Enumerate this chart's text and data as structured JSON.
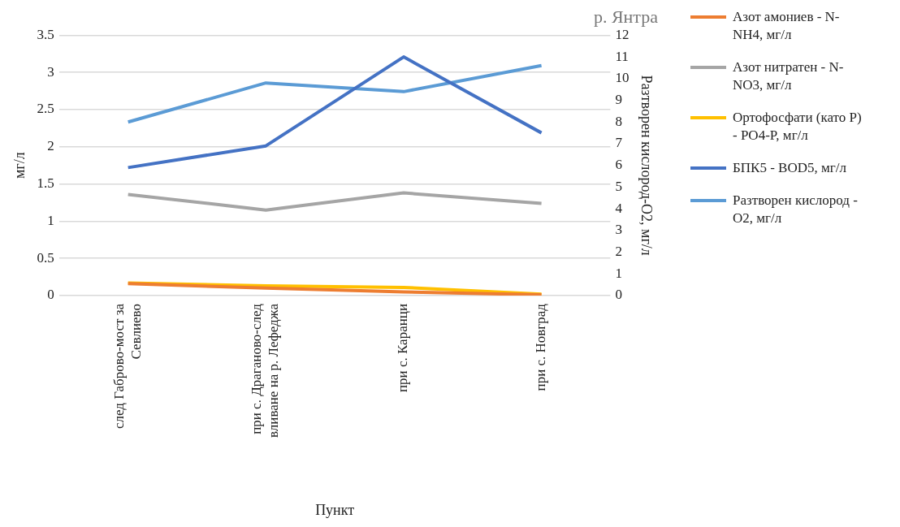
{
  "chart_data": {
    "type": "line",
    "title": "р. Янтра",
    "xlabel": "Пункт",
    "ylabel": "мг/л",
    "y2label": "Разтворен кислород-O2, мг/л",
    "categories": [
      "след Габрово-мост за Севлиево",
      "при с. Драганово-след вливане на р. Лефеджа",
      "при с. Каранци",
      "при с. Новград"
    ],
    "series": [
      {
        "name": "Азот амониев - N-NH4,  мг/л",
        "color": "#ed7d31",
        "values": [
          0.16,
          0.1,
          0.05,
          0.01
        ]
      },
      {
        "name": "Азот нитратен - N-NO3, мг/л",
        "color": "#a5a5a5",
        "values": [
          1.36,
          1.15,
          1.38,
          1.24
        ]
      },
      {
        "name": "Ортофосфати (като P) - PO4-P, мг/л",
        "color": "#ffc000",
        "values": [
          0.17,
          0.13,
          0.11,
          0.02
        ]
      },
      {
        "name": "БПК5 - BOD5, мг/л",
        "color": "#4472c4",
        "axis": "y2",
        "values": [
          5.9,
          6.9,
          11.0,
          7.5
        ]
      },
      {
        "name": "Разтворен кислород - O2, мг/л",
        "color": "#5b9bd5",
        "axis": "y2",
        "values": [
          8.0,
          9.8,
          9.4,
          10.6
        ]
      }
    ],
    "ylim": [
      0,
      3.5
    ],
    "yticks": [
      0,
      0.5,
      1,
      1.5,
      2,
      2.5,
      3,
      3.5
    ],
    "y2lim": [
      0,
      12
    ],
    "y2ticks": [
      0,
      1,
      2,
      3,
      4,
      5,
      6,
      7,
      8,
      9,
      10,
      11,
      12
    ],
    "grid": "y",
    "legend": "right",
    "marker": "none",
    "line_style": "solid"
  }
}
